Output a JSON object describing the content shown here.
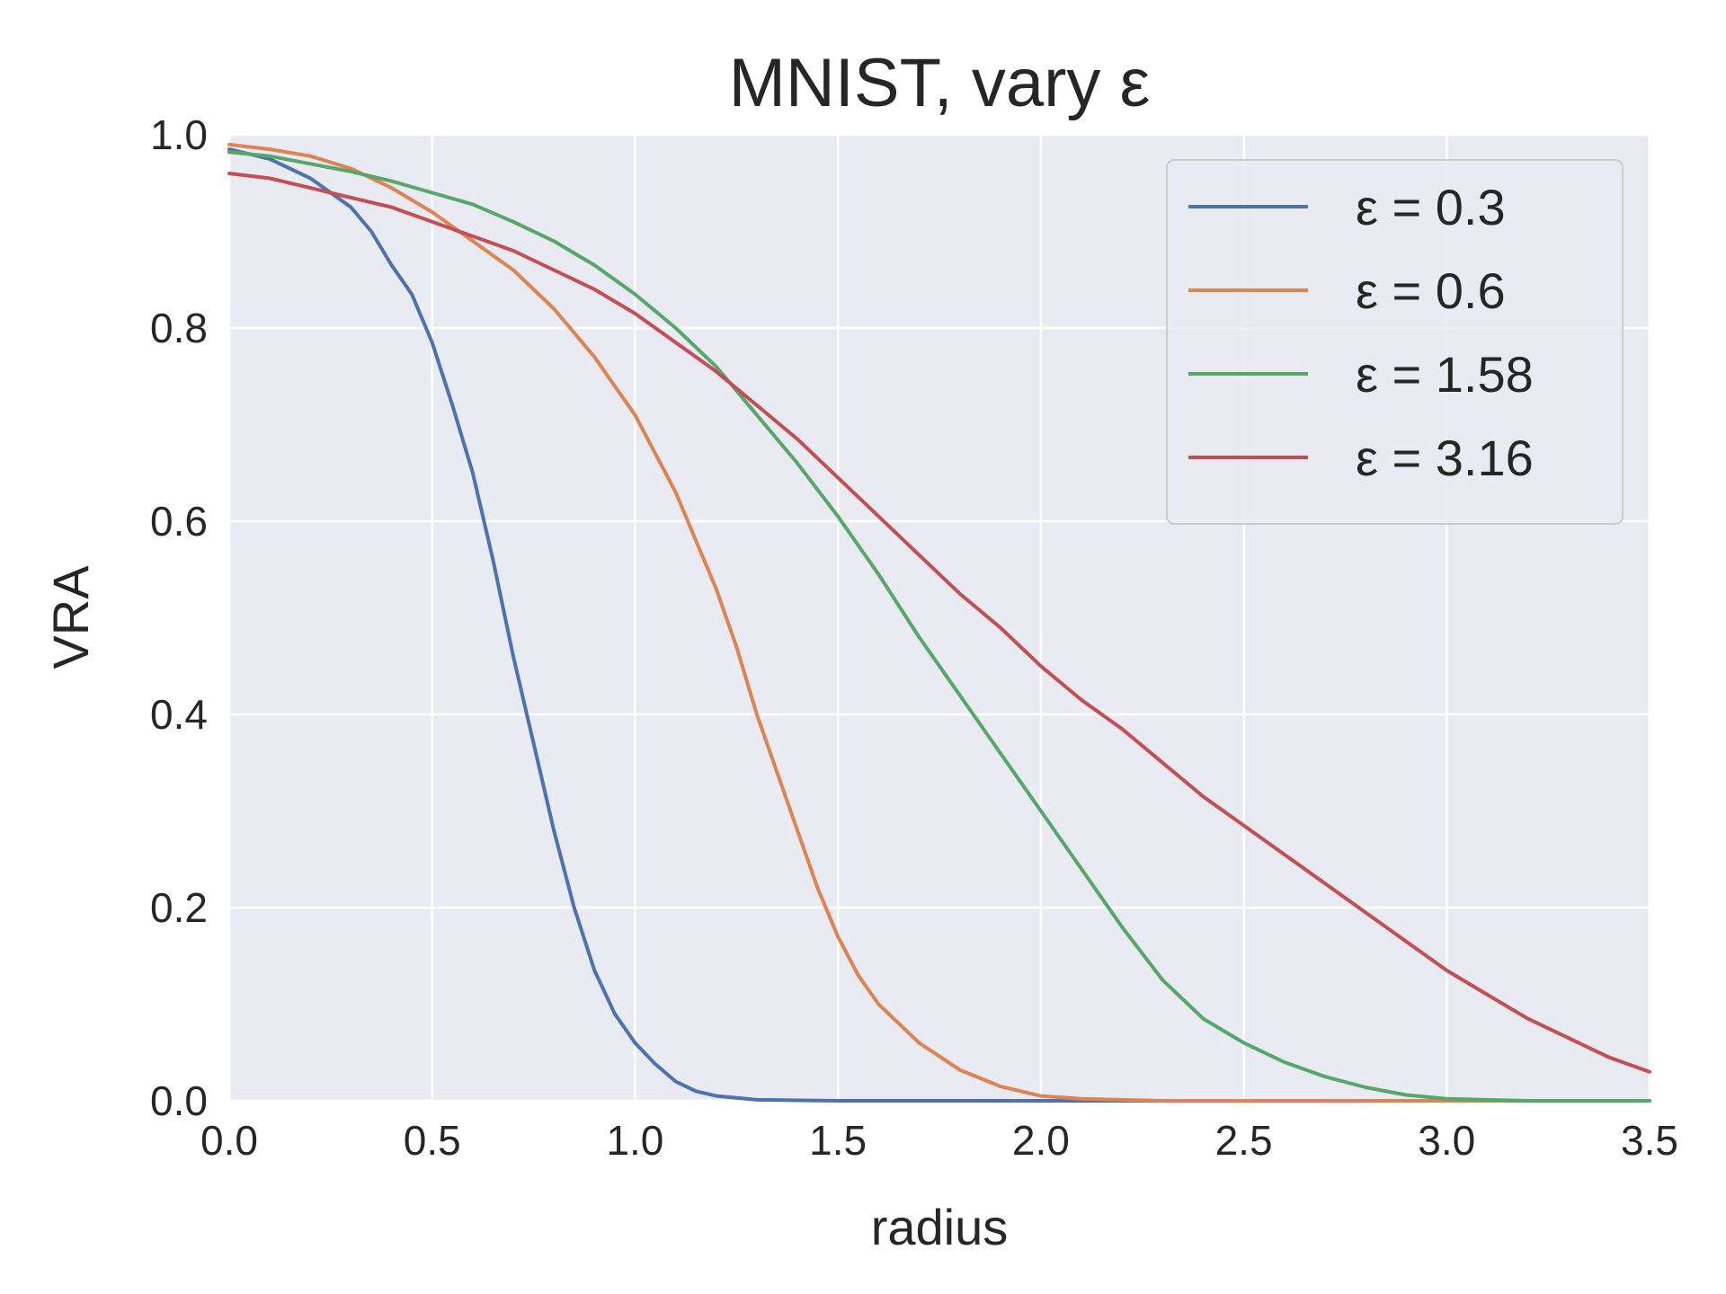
{
  "chart_data": {
    "type": "line",
    "title": "MNIST, vary ε",
    "xlabel": "radius",
    "ylabel": "VRA",
    "xlim": [
      0,
      3.5
    ],
    "ylim": [
      0,
      1
    ],
    "xticks": [
      "0.0",
      "0.5",
      "1.0",
      "1.5",
      "2.0",
      "2.5",
      "3.0",
      "3.5"
    ],
    "yticks": [
      "0.0",
      "0.2",
      "0.4",
      "0.6",
      "0.8",
      "1.0"
    ],
    "grid": true,
    "legend_position": "top-right",
    "background": "#EAEAF2",
    "series": [
      {
        "name": "ε = 0.3",
        "color": "#4C72B0",
        "points": [
          [
            0,
            0.985
          ],
          [
            0.1,
            0.975
          ],
          [
            0.2,
            0.955
          ],
          [
            0.3,
            0.925
          ],
          [
            0.35,
            0.9
          ],
          [
            0.4,
            0.865
          ],
          [
            0.45,
            0.835
          ],
          [
            0.5,
            0.785
          ],
          [
            0.55,
            0.72
          ],
          [
            0.6,
            0.65
          ],
          [
            0.65,
            0.56
          ],
          [
            0.7,
            0.46
          ],
          [
            0.75,
            0.37
          ],
          [
            0.8,
            0.28
          ],
          [
            0.85,
            0.2
          ],
          [
            0.9,
            0.135
          ],
          [
            0.95,
            0.09
          ],
          [
            1.0,
            0.06
          ],
          [
            1.05,
            0.038
          ],
          [
            1.1,
            0.02
          ],
          [
            1.15,
            0.01
          ],
          [
            1.2,
            0.005
          ],
          [
            1.3,
            0.001
          ],
          [
            1.5,
            0
          ],
          [
            2.0,
            0
          ],
          [
            3.0,
            0
          ],
          [
            3.5,
            0
          ]
        ]
      },
      {
        "name": "ε = 0.6",
        "color": "#DD8452",
        "points": [
          [
            0,
            0.99
          ],
          [
            0.1,
            0.985
          ],
          [
            0.2,
            0.978
          ],
          [
            0.3,
            0.965
          ],
          [
            0.4,
            0.945
          ],
          [
            0.5,
            0.92
          ],
          [
            0.6,
            0.89
          ],
          [
            0.7,
            0.86
          ],
          [
            0.8,
            0.82
          ],
          [
            0.9,
            0.77
          ],
          [
            1.0,
            0.71
          ],
          [
            1.05,
            0.67
          ],
          [
            1.1,
            0.63
          ],
          [
            1.15,
            0.58
          ],
          [
            1.2,
            0.53
          ],
          [
            1.25,
            0.47
          ],
          [
            1.3,
            0.4
          ],
          [
            1.35,
            0.34
          ],
          [
            1.4,
            0.28
          ],
          [
            1.45,
            0.22
          ],
          [
            1.5,
            0.17
          ],
          [
            1.55,
            0.13
          ],
          [
            1.6,
            0.1
          ],
          [
            1.7,
            0.06
          ],
          [
            1.8,
            0.032
          ],
          [
            1.9,
            0.015
          ],
          [
            2.0,
            0.005
          ],
          [
            2.1,
            0.002
          ],
          [
            2.3,
            0
          ],
          [
            3.0,
            0
          ],
          [
            3.5,
            0
          ]
        ]
      },
      {
        "name": "ε = 1.58",
        "color": "#55A868",
        "points": [
          [
            0,
            0.982
          ],
          [
            0.1,
            0.978
          ],
          [
            0.2,
            0.97
          ],
          [
            0.3,
            0.962
          ],
          [
            0.4,
            0.952
          ],
          [
            0.5,
            0.94
          ],
          [
            0.6,
            0.928
          ],
          [
            0.7,
            0.91
          ],
          [
            0.8,
            0.89
          ],
          [
            0.9,
            0.865
          ],
          [
            1.0,
            0.835
          ],
          [
            1.1,
            0.8
          ],
          [
            1.2,
            0.76
          ],
          [
            1.3,
            0.71
          ],
          [
            1.4,
            0.66
          ],
          [
            1.5,
            0.605
          ],
          [
            1.6,
            0.545
          ],
          [
            1.7,
            0.48
          ],
          [
            1.8,
            0.42
          ],
          [
            1.9,
            0.36
          ],
          [
            2.0,
            0.3
          ],
          [
            2.1,
            0.24
          ],
          [
            2.2,
            0.18
          ],
          [
            2.3,
            0.125
          ],
          [
            2.4,
            0.085
          ],
          [
            2.5,
            0.06
          ],
          [
            2.6,
            0.04
          ],
          [
            2.7,
            0.025
          ],
          [
            2.8,
            0.014
          ],
          [
            2.9,
            0.006
          ],
          [
            3.0,
            0.002
          ],
          [
            3.2,
            0
          ],
          [
            3.5,
            0
          ]
        ]
      },
      {
        "name": "ε = 3.16",
        "color": "#C44E52",
        "points": [
          [
            0,
            0.96
          ],
          [
            0.1,
            0.955
          ],
          [
            0.2,
            0.945
          ],
          [
            0.3,
            0.935
          ],
          [
            0.4,
            0.925
          ],
          [
            0.5,
            0.91
          ],
          [
            0.6,
            0.895
          ],
          [
            0.7,
            0.88
          ],
          [
            0.8,
            0.86
          ],
          [
            0.9,
            0.84
          ],
          [
            1.0,
            0.815
          ],
          [
            1.1,
            0.785
          ],
          [
            1.2,
            0.755
          ],
          [
            1.3,
            0.72
          ],
          [
            1.4,
            0.685
          ],
          [
            1.5,
            0.645
          ],
          [
            1.6,
            0.605
          ],
          [
            1.7,
            0.565
          ],
          [
            1.8,
            0.525
          ],
          [
            1.9,
            0.49
          ],
          [
            2.0,
            0.45
          ],
          [
            2.1,
            0.415
          ],
          [
            2.2,
            0.385
          ],
          [
            2.3,
            0.35
          ],
          [
            2.4,
            0.315
          ],
          [
            2.5,
            0.285
          ],
          [
            2.6,
            0.255
          ],
          [
            2.7,
            0.225
          ],
          [
            2.8,
            0.195
          ],
          [
            2.9,
            0.165
          ],
          [
            3.0,
            0.135
          ],
          [
            3.1,
            0.11
          ],
          [
            3.2,
            0.085
          ],
          [
            3.3,
            0.065
          ],
          [
            3.4,
            0.045
          ],
          [
            3.5,
            0.03
          ]
        ]
      }
    ]
  }
}
